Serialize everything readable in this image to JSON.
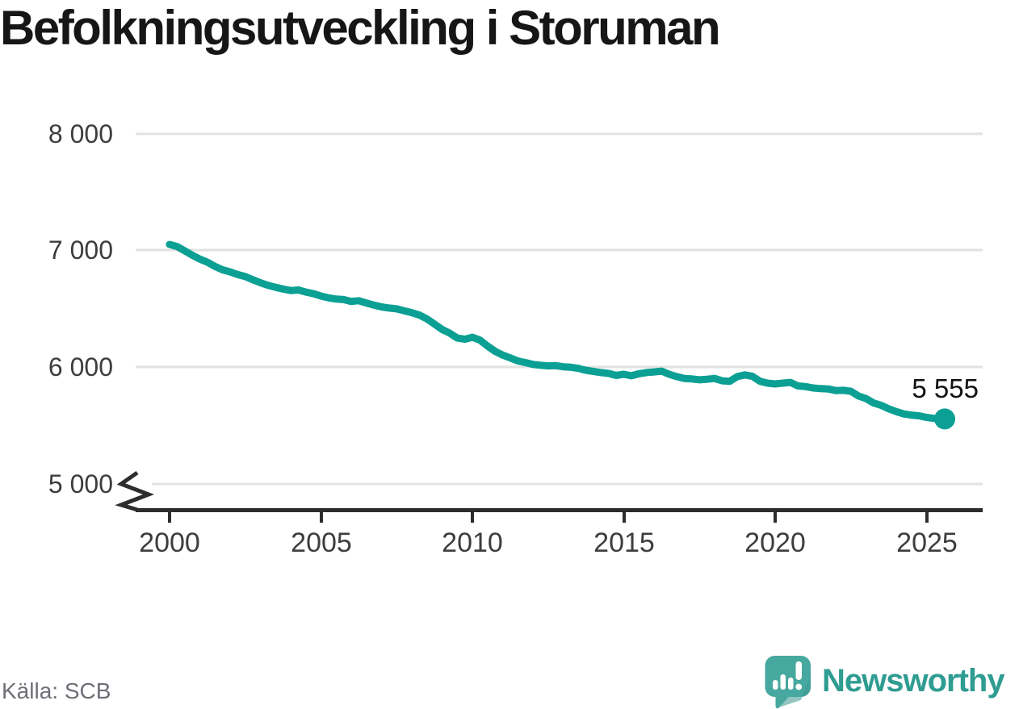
{
  "title": "Befolkningsutveckling i Storuman",
  "source": "Källa: SCB",
  "branding": {
    "name": "Newsworthy",
    "logo_icon": "speech-bubble-bar-chart-icon"
  },
  "colors": {
    "line": "#0ba093",
    "end_dot": "#0ba093",
    "grid": "#e2e2e2",
    "axis": "#2d2d2d",
    "title_text": "#161616",
    "tick_text": "#3d3d3d",
    "source_text": "#6f6f78",
    "brand_teal": "#2f9c92",
    "brand_bubble": "#47a89f"
  },
  "chart_data": {
    "type": "line",
    "title": "Befolkningsutveckling i Storuman",
    "xlabel": "",
    "ylabel": "",
    "grid": "horizontal",
    "legend_position": "none",
    "source": "Källa: SCB",
    "x_ticks": [
      2000,
      2005,
      2010,
      2015,
      2020,
      2025
    ],
    "y_ticks": [
      {
        "value": 5000,
        "label": "5 000"
      },
      {
        "value": 6000,
        "label": "6 000"
      },
      {
        "value": 7000,
        "label": "7 000"
      },
      {
        "value": 8000,
        "label": "8 000"
      }
    ],
    "y_axis_break_below": 5000,
    "xlim": [
      1998.9,
      2026.9
    ],
    "ylim": [
      4790,
      8000
    ],
    "end_label": "5 555",
    "end_value": 5555,
    "series": [
      {
        "name": "Befolkning",
        "color": "#0ba093",
        "points": [
          [
            2000.0,
            7050
          ],
          [
            2000.25,
            7032
          ],
          [
            2000.5,
            6995
          ],
          [
            2000.75,
            6958
          ],
          [
            2001.0,
            6925
          ],
          [
            2001.25,
            6898
          ],
          [
            2001.5,
            6862
          ],
          [
            2001.75,
            6833
          ],
          [
            2002.0,
            6815
          ],
          [
            2002.25,
            6792
          ],
          [
            2002.5,
            6775
          ],
          [
            2002.75,
            6748
          ],
          [
            2003.0,
            6722
          ],
          [
            2003.25,
            6700
          ],
          [
            2003.5,
            6683
          ],
          [
            2003.75,
            6668
          ],
          [
            2004.0,
            6655
          ],
          [
            2004.25,
            6660
          ],
          [
            2004.5,
            6642
          ],
          [
            2004.75,
            6628
          ],
          [
            2005.0,
            6608
          ],
          [
            2005.25,
            6592
          ],
          [
            2005.5,
            6582
          ],
          [
            2005.75,
            6578
          ],
          [
            2006.0,
            6562
          ],
          [
            2006.25,
            6568
          ],
          [
            2006.5,
            6548
          ],
          [
            2006.75,
            6530
          ],
          [
            2007.0,
            6515
          ],
          [
            2007.25,
            6505
          ],
          [
            2007.5,
            6498
          ],
          [
            2007.75,
            6482
          ],
          [
            2008.0,
            6465
          ],
          [
            2008.25,
            6445
          ],
          [
            2008.5,
            6412
          ],
          [
            2008.75,
            6368
          ],
          [
            2009.0,
            6322
          ],
          [
            2009.25,
            6290
          ],
          [
            2009.5,
            6248
          ],
          [
            2009.75,
            6238
          ],
          [
            2010.0,
            6255
          ],
          [
            2010.25,
            6230
          ],
          [
            2010.5,
            6180
          ],
          [
            2010.75,
            6135
          ],
          [
            2011.0,
            6102
          ],
          [
            2011.25,
            6078
          ],
          [
            2011.5,
            6052
          ],
          [
            2011.75,
            6038
          ],
          [
            2012.0,
            6022
          ],
          [
            2012.25,
            6015
          ],
          [
            2012.5,
            6010
          ],
          [
            2012.75,
            6012
          ],
          [
            2013.0,
            6002
          ],
          [
            2013.25,
            5998
          ],
          [
            2013.5,
            5988
          ],
          [
            2013.75,
            5972
          ],
          [
            2014.0,
            5962
          ],
          [
            2014.25,
            5952
          ],
          [
            2014.5,
            5945
          ],
          [
            2014.75,
            5928
          ],
          [
            2015.0,
            5938
          ],
          [
            2015.25,
            5925
          ],
          [
            2015.5,
            5942
          ],
          [
            2015.75,
            5952
          ],
          [
            2016.0,
            5958
          ],
          [
            2016.25,
            5965
          ],
          [
            2016.5,
            5938
          ],
          [
            2016.75,
            5918
          ],
          [
            2017.0,
            5902
          ],
          [
            2017.25,
            5898
          ],
          [
            2017.5,
            5890
          ],
          [
            2017.75,
            5895
          ],
          [
            2018.0,
            5902
          ],
          [
            2018.25,
            5882
          ],
          [
            2018.5,
            5878
          ],
          [
            2018.75,
            5918
          ],
          [
            2019.0,
            5932
          ],
          [
            2019.25,
            5920
          ],
          [
            2019.5,
            5878
          ],
          [
            2019.75,
            5862
          ],
          [
            2020.0,
            5855
          ],
          [
            2020.25,
            5862
          ],
          [
            2020.5,
            5868
          ],
          [
            2020.75,
            5838
          ],
          [
            2021.0,
            5832
          ],
          [
            2021.25,
            5820
          ],
          [
            2021.5,
            5815
          ],
          [
            2021.75,
            5812
          ],
          [
            2022.0,
            5798
          ],
          [
            2022.25,
            5800
          ],
          [
            2022.5,
            5792
          ],
          [
            2022.75,
            5752
          ],
          [
            2023.0,
            5730
          ],
          [
            2023.25,
            5692
          ],
          [
            2023.5,
            5672
          ],
          [
            2023.75,
            5642
          ],
          [
            2024.0,
            5618
          ],
          [
            2024.25,
            5598
          ],
          [
            2024.5,
            5588
          ],
          [
            2024.75,
            5582
          ],
          [
            2025.0,
            5568
          ],
          [
            2025.25,
            5560
          ],
          [
            2025.6,
            5555
          ]
        ]
      }
    ]
  }
}
